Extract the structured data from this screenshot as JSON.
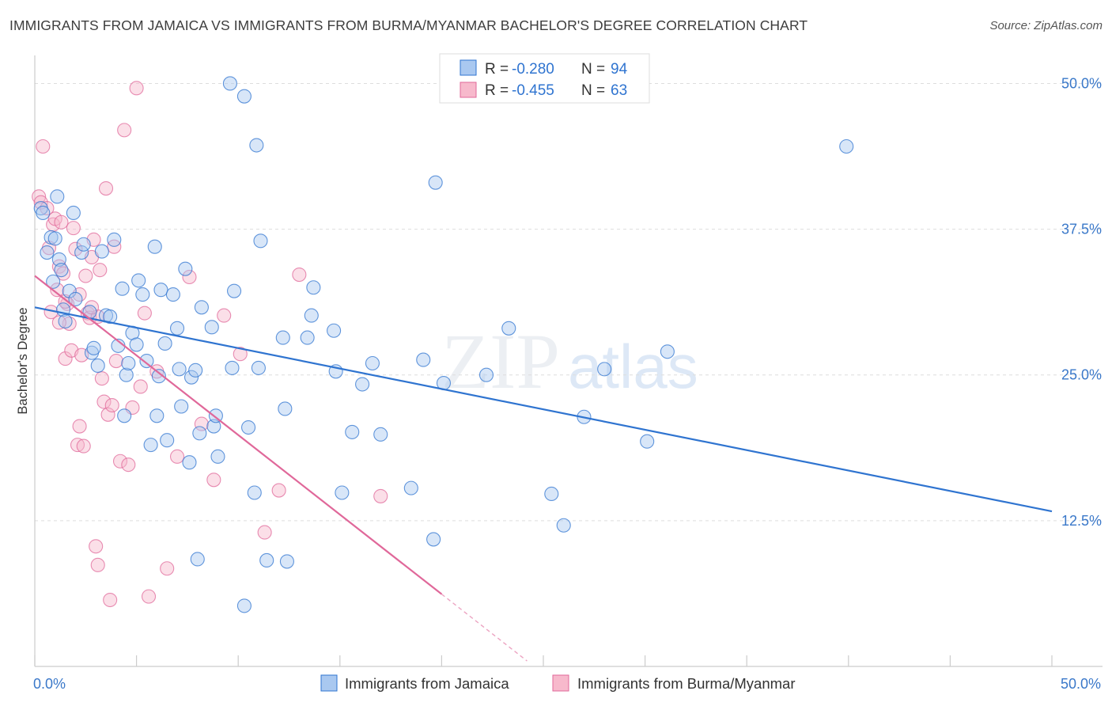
{
  "header": {
    "title": "IMMIGRANTS FROM JAMAICA VS IMMIGRANTS FROM BURMA/MYANMAR BACHELOR'S DEGREE CORRELATION CHART",
    "source": "Source: ZipAtlas.com"
  },
  "colors": {
    "blue": "#2f74d0",
    "blue_fill": "#a9c8f0",
    "pink": "#e0689a",
    "pink_fill": "#f7b9cc",
    "tick_label": "#3a78c9",
    "grid": "#dddddd"
  },
  "watermark": {
    "part1": "ZIP",
    "part2": "atlas"
  },
  "legend_top": {
    "rows": [
      {
        "r_label": "R =",
        "r_value": "-0.280",
        "n_label": "N =",
        "n_value": "94"
      },
      {
        "r_label": "R =",
        "r_value": "-0.455",
        "n_label": "N =",
        "n_value": "63"
      }
    ]
  },
  "chart_data": {
    "type": "scatter",
    "title": "IMMIGRANTS FROM JAMAICA VS IMMIGRANTS FROM BURMA/MYANMAR BACHELOR'S DEGREE CORRELATION CHART",
    "xlabel": "",
    "ylabel": "Bachelor's Degree",
    "xlim": [
      0,
      50
    ],
    "ylim": [
      0,
      52
    ],
    "x_tick_labels": [
      "0.0%",
      "50.0%"
    ],
    "y_ticks": [
      12.5,
      25.0,
      37.5,
      50.0
    ],
    "y_tick_labels": [
      "12.5%",
      "25.0%",
      "37.5%",
      "50.0%"
    ],
    "grid": "horizontal dashed",
    "legend_position": "bottom",
    "series": [
      {
        "name": "Immigrants from Jamaica",
        "color": "#2f74d0",
        "R": -0.28,
        "N": 94,
        "trend": {
          "x0": 0,
          "y0": 30.8,
          "x1": 50,
          "y1": 13.3
        },
        "points": [
          [
            0.3,
            39.3
          ],
          [
            0.4,
            38.9
          ],
          [
            0.6,
            35.5
          ],
          [
            0.8,
            36.8
          ],
          [
            1.0,
            36.7
          ],
          [
            1.1,
            40.3
          ],
          [
            1.2,
            34.9
          ],
          [
            0.9,
            33.0
          ],
          [
            1.3,
            34.0
          ],
          [
            1.4,
            30.6
          ],
          [
            1.5,
            29.6
          ],
          [
            1.7,
            32.2
          ],
          [
            1.9,
            38.9
          ],
          [
            2.0,
            31.5
          ],
          [
            2.3,
            35.5
          ],
          [
            2.4,
            36.2
          ],
          [
            2.7,
            30.4
          ],
          [
            2.8,
            26.9
          ],
          [
            2.9,
            27.3
          ],
          [
            3.1,
            25.8
          ],
          [
            3.3,
            35.6
          ],
          [
            3.5,
            30.1
          ],
          [
            3.7,
            30.0
          ],
          [
            3.9,
            36.6
          ],
          [
            4.1,
            27.5
          ],
          [
            4.3,
            32.4
          ],
          [
            4.4,
            21.5
          ],
          [
            4.5,
            25.0
          ],
          [
            4.6,
            26.0
          ],
          [
            4.8,
            28.6
          ],
          [
            5.0,
            27.6
          ],
          [
            5.1,
            33.1
          ],
          [
            5.3,
            31.9
          ],
          [
            5.5,
            26.2
          ],
          [
            5.7,
            19.0
          ],
          [
            5.9,
            36.0
          ],
          [
            6.0,
            21.5
          ],
          [
            6.1,
            24.9
          ],
          [
            6.2,
            32.3
          ],
          [
            6.4,
            27.7
          ],
          [
            6.5,
            19.4
          ],
          [
            6.8,
            31.9
          ],
          [
            7.0,
            29.0
          ],
          [
            7.1,
            25.5
          ],
          [
            7.2,
            22.3
          ],
          [
            7.4,
            34.1
          ],
          [
            7.6,
            17.5
          ],
          [
            7.7,
            24.8
          ],
          [
            7.9,
            25.4
          ],
          [
            8.0,
            9.2
          ],
          [
            8.1,
            20.0
          ],
          [
            8.2,
            30.8
          ],
          [
            8.7,
            29.1
          ],
          [
            8.8,
            20.6
          ],
          [
            8.9,
            21.5
          ],
          [
            9.0,
            18.0
          ],
          [
            9.6,
            50.0
          ],
          [
            9.7,
            25.6
          ],
          [
            9.8,
            32.2
          ],
          [
            10.3,
            48.9
          ],
          [
            10.3,
            5.2
          ],
          [
            10.5,
            20.5
          ],
          [
            10.8,
            14.9
          ],
          [
            10.9,
            44.7
          ],
          [
            11.0,
            25.6
          ],
          [
            11.1,
            36.5
          ],
          [
            11.4,
            9.1
          ],
          [
            12.2,
            28.2
          ],
          [
            12.3,
            22.1
          ],
          [
            12.4,
            9.0
          ],
          [
            13.4,
            28.2
          ],
          [
            13.6,
            30.1
          ],
          [
            13.7,
            32.5
          ],
          [
            14.7,
            28.8
          ],
          [
            14.8,
            25.3
          ],
          [
            15.1,
            14.9
          ],
          [
            15.6,
            20.1
          ],
          [
            16.1,
            24.2
          ],
          [
            16.6,
            26.0
          ],
          [
            17.0,
            19.9
          ],
          [
            18.5,
            15.3
          ],
          [
            19.1,
            26.3
          ],
          [
            19.6,
            10.9
          ],
          [
            19.7,
            41.5
          ],
          [
            20.1,
            24.3
          ],
          [
            22.2,
            25.0
          ],
          [
            23.3,
            29.0
          ],
          [
            25.4,
            14.8
          ],
          [
            26.0,
            12.1
          ],
          [
            27.0,
            21.4
          ],
          [
            28.0,
            25.5
          ],
          [
            39.9,
            44.6
          ],
          [
            30.1,
            19.3
          ],
          [
            31.1,
            27.0
          ]
        ]
      },
      {
        "name": "Immigrants from Burma/Myanmar",
        "color": "#e0689a",
        "R": -0.455,
        "N": 63,
        "trend": {
          "x0": 0,
          "y0": 33.5,
          "x1": 20,
          "y1": 6.2,
          "dashed_to_x": 24.2
        },
        "points": [
          [
            0.2,
            40.3
          ],
          [
            0.3,
            39.8
          ],
          [
            0.4,
            44.6
          ],
          [
            0.6,
            39.3
          ],
          [
            0.7,
            35.9
          ],
          [
            0.8,
            30.4
          ],
          [
            0.9,
            37.9
          ],
          [
            1.0,
            38.4
          ],
          [
            1.1,
            32.3
          ],
          [
            1.2,
            34.3
          ],
          [
            1.3,
            38.1
          ],
          [
            1.4,
            33.7
          ],
          [
            1.5,
            26.4
          ],
          [
            1.6,
            31.1
          ],
          [
            1.7,
            29.4
          ],
          [
            1.8,
            27.1
          ],
          [
            1.9,
            37.6
          ],
          [
            2.0,
            35.8
          ],
          [
            2.1,
            19.0
          ],
          [
            2.2,
            20.6
          ],
          [
            2.3,
            26.7
          ],
          [
            2.4,
            18.9
          ],
          [
            2.5,
            33.5
          ],
          [
            2.6,
            30.3
          ],
          [
            2.7,
            29.9
          ],
          [
            2.8,
            35.1
          ],
          [
            2.9,
            36.6
          ],
          [
            3.0,
            10.3
          ],
          [
            3.1,
            8.7
          ],
          [
            3.2,
            34.0
          ],
          [
            3.3,
            24.7
          ],
          [
            3.4,
            22.7
          ],
          [
            3.5,
            41.0
          ],
          [
            3.6,
            21.6
          ],
          [
            3.7,
            5.7
          ],
          [
            3.8,
            22.4
          ],
          [
            3.9,
            36.0
          ],
          [
            4.0,
            26.2
          ],
          [
            4.2,
            17.6
          ],
          [
            4.4,
            46.0
          ],
          [
            4.6,
            17.3
          ],
          [
            4.8,
            22.2
          ],
          [
            5.0,
            49.6
          ],
          [
            5.2,
            24.0
          ],
          [
            5.4,
            30.3
          ],
          [
            5.6,
            6.0
          ],
          [
            6.0,
            25.3
          ],
          [
            6.5,
            8.4
          ],
          [
            7.0,
            18.0
          ],
          [
            7.6,
            33.4
          ],
          [
            8.2,
            20.8
          ],
          [
            8.8,
            16.0
          ],
          [
            9.3,
            30.1
          ],
          [
            10.1,
            26.8
          ],
          [
            11.3,
            11.5
          ],
          [
            12.0,
            15.1
          ],
          [
            13.0,
            33.6
          ],
          [
            17.0,
            14.6
          ],
          [
            1.5,
            31.3
          ],
          [
            2.2,
            31.9
          ],
          [
            3.1,
            30.0
          ],
          [
            2.8,
            30.8
          ],
          [
            1.2,
            29.5
          ]
        ]
      }
    ]
  },
  "legend_bottom": {
    "items": [
      {
        "label": "Immigrants from Jamaica"
      },
      {
        "label": "Immigrants from Burma/Myanmar"
      }
    ]
  }
}
